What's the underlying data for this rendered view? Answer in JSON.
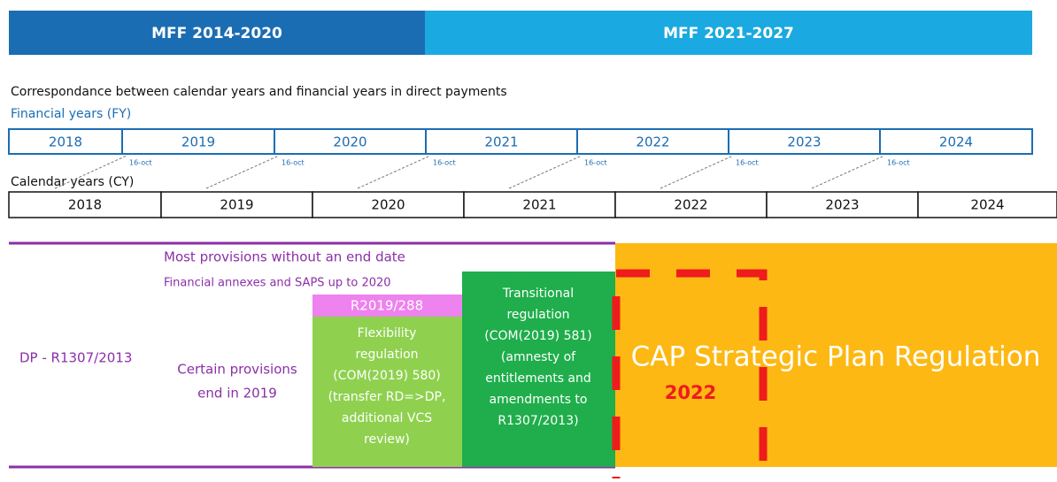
{
  "header": {
    "left": "MFF 2014-2020",
    "right": "MFF 2021-2027"
  },
  "caption": "Correspondance between calendar years and financial years in direct payments",
  "financial_years": {
    "label": "Financial years (FY)",
    "years": [
      "2018",
      "2019",
      "2020",
      "2021",
      "2022",
      "2023",
      "2024"
    ],
    "cutoff": "16-oct"
  },
  "calendar_years": {
    "label": "Calendar years (CY)",
    "years": [
      "2018",
      "2019",
      "2020",
      "2021",
      "2022",
      "2023",
      "2024"
    ]
  },
  "provisions": {
    "dp": "DP - R1307/2013",
    "most": "Most provisions without an end date",
    "annexes": "Financial annexes and SAPS up to 2020",
    "certain": [
      "Certain provisions",
      "end in 2019"
    ],
    "r2019": "R2019/288",
    "flexibility": [
      "Flexibility",
      "regulation",
      "(COM(2019) 580)",
      "(transfer RD=>DP,",
      "additional VCS",
      "review)"
    ],
    "transitional": [
      "Transitional",
      "regulation",
      "(COM(2019) 581)",
      "(amnesty of",
      "entitlements and",
      "amendments to",
      "R1307/2013)"
    ],
    "cap": "CAP Strategic Plan Regulation",
    "highlight": "2022"
  }
}
